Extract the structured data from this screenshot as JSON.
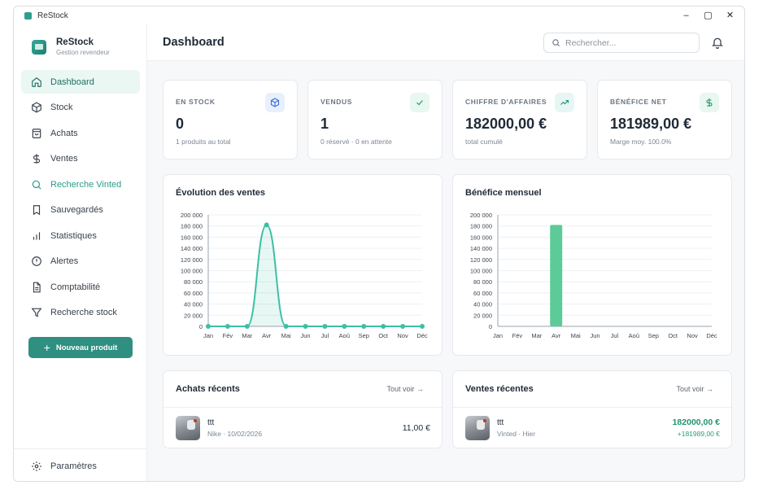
{
  "window": {
    "title": "ReStock",
    "controls": [
      "–",
      "▢",
      "✕"
    ]
  },
  "brand": {
    "name": "ReStock",
    "subtitle": "Gestion revendeur"
  },
  "nav": [
    {
      "label": "Dashboard",
      "icon": "home-icon"
    },
    {
      "label": "Stock",
      "icon": "box-icon"
    },
    {
      "label": "Achats",
      "icon": "shopping-bag-icon"
    },
    {
      "label": "Ventes",
      "icon": "dollar-icon"
    },
    {
      "label": "Recherche Vinted",
      "icon": "search-icon"
    },
    {
      "label": "Sauvegardés",
      "icon": "bookmark-icon"
    },
    {
      "label": "Statistiques",
      "icon": "bar-chart-icon"
    },
    {
      "label": "Alertes",
      "icon": "alert-circle-icon"
    },
    {
      "label": "Comptabilité",
      "icon": "document-icon"
    },
    {
      "label": "Recherche stock",
      "icon": "filter-icon"
    }
  ],
  "new_product_label": "Nouveau produit",
  "settings_label": "Paramètres",
  "header": {
    "title": "Dashboard",
    "search_placeholder": "Rechercher..."
  },
  "stats": [
    {
      "label": "EN STOCK",
      "value": "0",
      "sub": "1 produits au total",
      "icon": "cube-icon",
      "icon_bg": "#e8f0fe",
      "icon_color": "#3b6fd6"
    },
    {
      "label": "VENDUS",
      "value": "1",
      "sub": "0 réservé · 0 en attente",
      "icon": "check-icon",
      "icon_bg": "#e8f7ef",
      "icon_color": "#2a9d62"
    },
    {
      "label": "CHIFFRE D'AFFAIRES",
      "value": "182000,00 €",
      "sub": "total cumulé",
      "icon": "trending-up-icon",
      "icon_bg": "#e6f6f3",
      "icon_color": "#1f8f7e"
    },
    {
      "label": "BÉNÉFICE NET",
      "value": "181989,00 €",
      "sub": "Marge moy. 100.0%",
      "icon": "dollar-icon",
      "icon_bg": "#e8f7ef",
      "icon_color": "#22946b"
    }
  ],
  "chart_data": [
    {
      "type": "area",
      "title": "Évolution des ventes",
      "categories": [
        "Jan",
        "Fév",
        "Mar",
        "Avr",
        "Mai",
        "Jun",
        "Jul",
        "Aoû",
        "Sep",
        "Oct",
        "Nov",
        "Déc"
      ],
      "values": [
        0,
        0,
        0,
        182000,
        0,
        0,
        0,
        0,
        0,
        0,
        0,
        0
      ],
      "ylim": [
        0,
        200000
      ],
      "yticks": [
        "200 000",
        "180 000",
        "160 000",
        "140 000",
        "120 000",
        "100 000",
        "80 000",
        "60 000",
        "40 000",
        "20 000",
        "0"
      ],
      "grid": true,
      "color": "#3dbfa5"
    },
    {
      "type": "bar",
      "title": "Bénéfice mensuel",
      "categories": [
        "Jan",
        "Fév",
        "Mar",
        "Avr",
        "Mai",
        "Jun",
        "Jul",
        "Aoû",
        "Sep",
        "Oct",
        "Nov",
        "Déc"
      ],
      "values": [
        0,
        0,
        0,
        181989,
        0,
        0,
        0,
        0,
        0,
        0,
        0,
        0
      ],
      "ylim": [
        0,
        200000
      ],
      "yticks": [
        "200 000",
        "180 000",
        "160 000",
        "140 000",
        "120 000",
        "100 000",
        "80 000",
        "60 000",
        "40 000",
        "20 000",
        "0"
      ],
      "grid": true,
      "color": "#5ccb98"
    }
  ],
  "recent_purchases": {
    "title": "Achats récents",
    "see_all": "Tout voir →",
    "items": [
      {
        "name": "ttt",
        "sub": "Nike · 10/02/2026",
        "price": "11,00 €"
      }
    ]
  },
  "recent_sales": {
    "title": "Ventes récentes",
    "see_all": "Tout voir →",
    "items": [
      {
        "name": "ttt",
        "sub": "Vinted · Hier",
        "price": "182000,00 €",
        "profit": "+181989,00 €"
      }
    ]
  }
}
